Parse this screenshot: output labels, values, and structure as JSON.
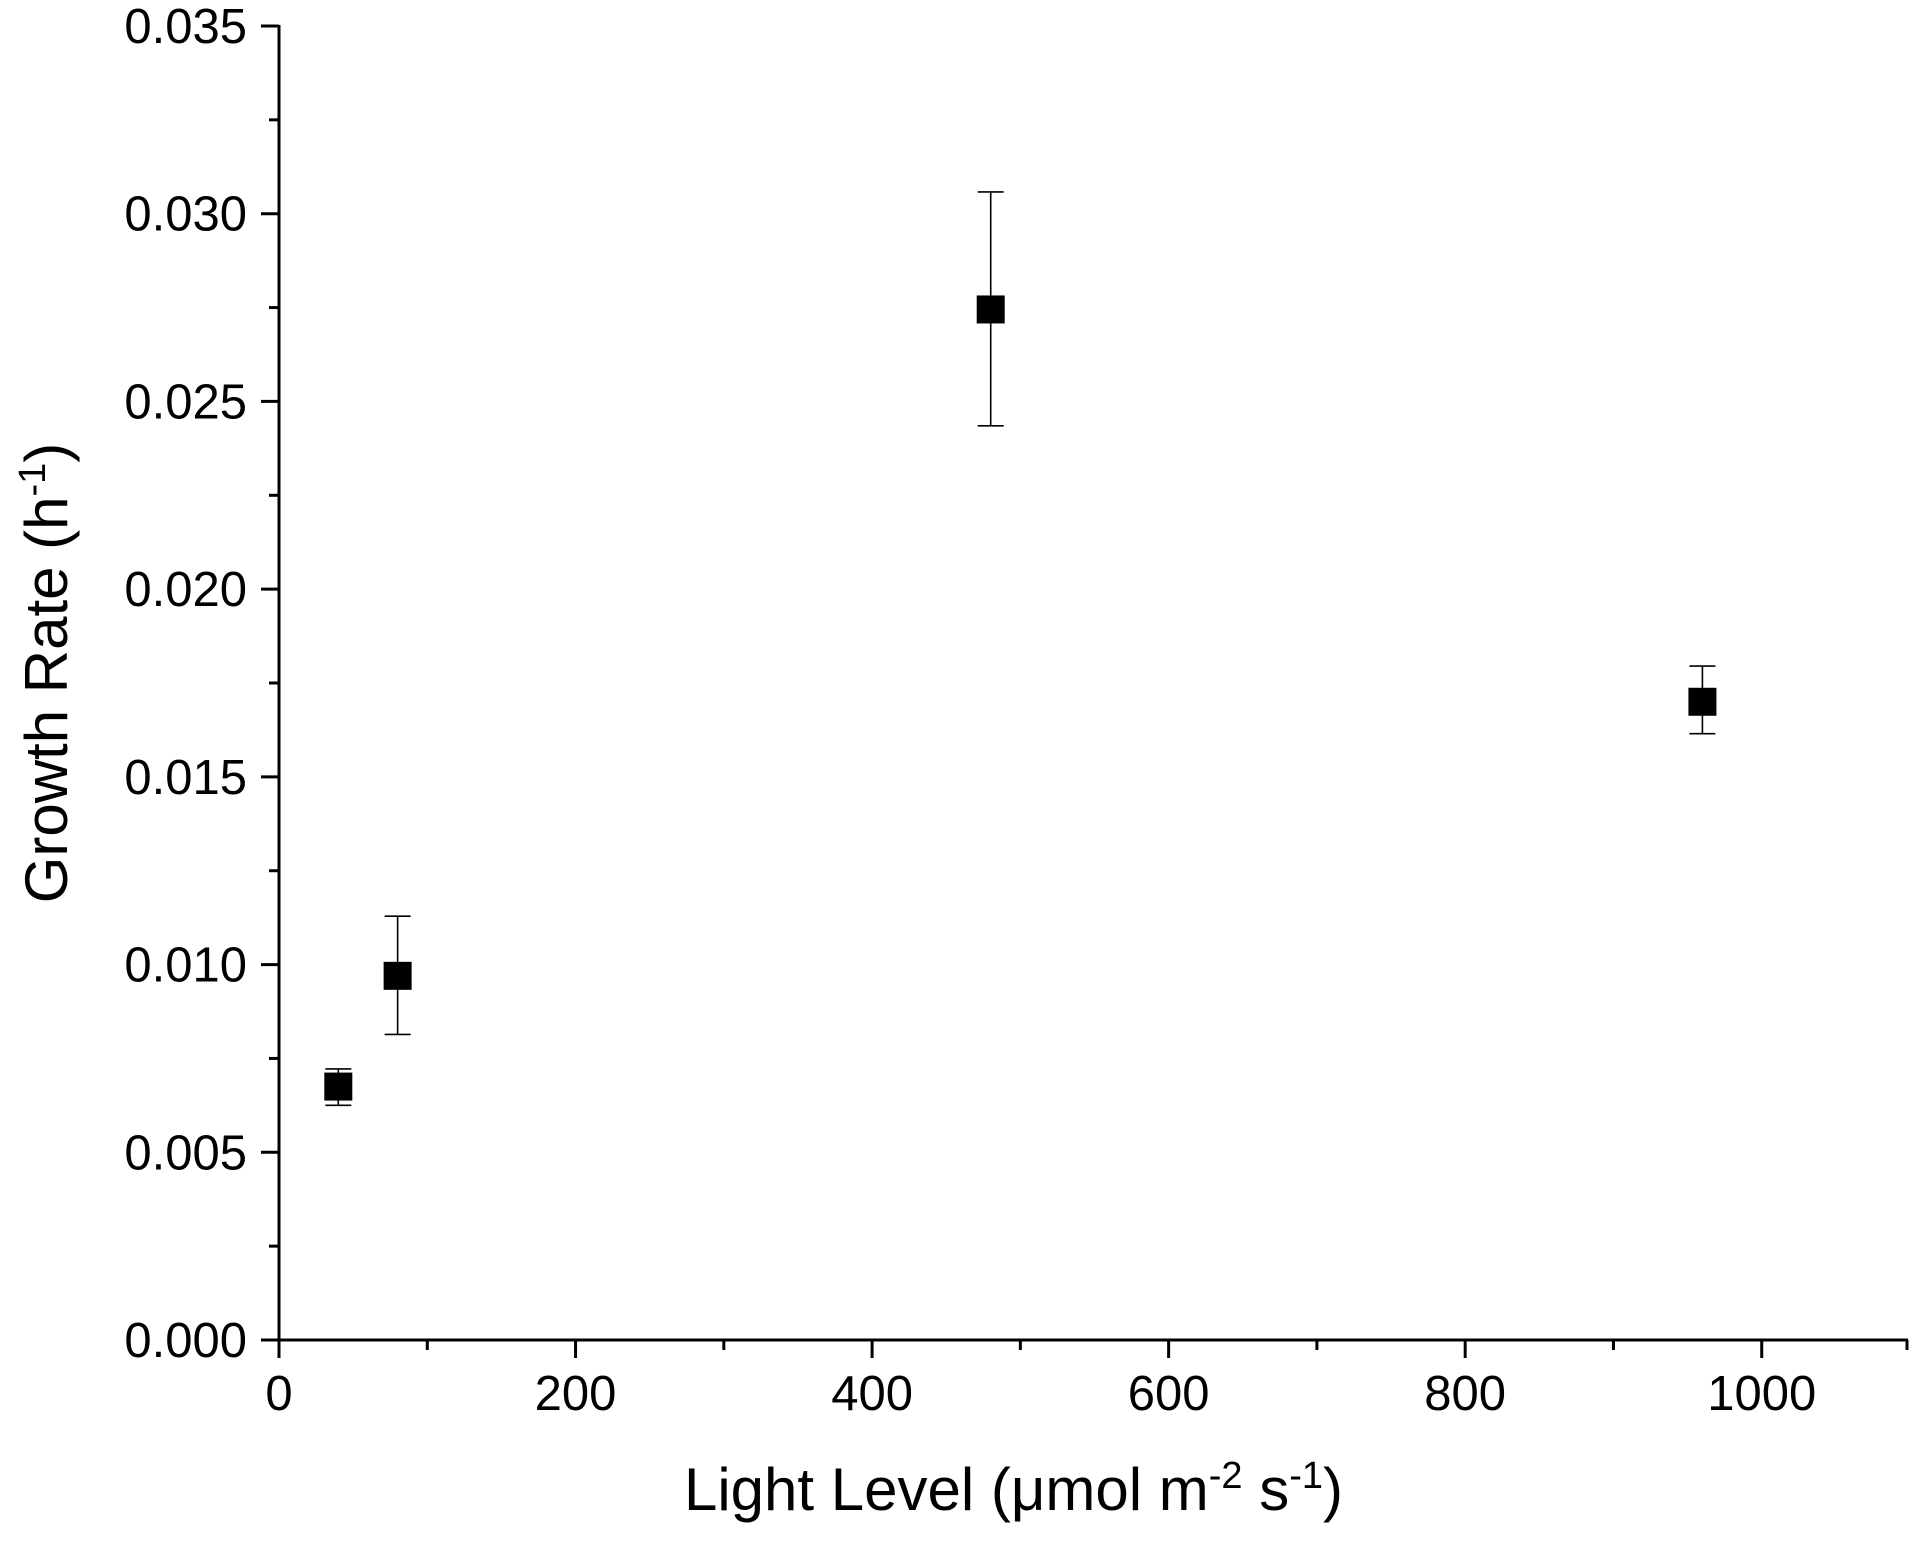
{
  "chart_data": {
    "type": "scatter",
    "title": "",
    "xlabel": "Light Level (μmol m⁻² s⁻¹)",
    "ylabel": "Growth Rate (h⁻¹)",
    "xlabel_parts": {
      "main": "Light Level (μmol m",
      "sup1": "-2",
      "mid": " s",
      "sup2": "-1",
      "end": ")"
    },
    "ylabel_parts": {
      "main": "Growth Rate (h",
      "sup": "-1",
      "end": ")"
    },
    "xlim": [
      0,
      1100
    ],
    "ylim": [
      0,
      0.035
    ],
    "x_ticks": [
      0,
      200,
      400,
      600,
      800,
      1000
    ],
    "x_tick_labels": [
      "0",
      "200",
      "400",
      "600",
      "800",
      "1000"
    ],
    "x_minor_ticks": [
      100,
      300,
      500,
      700,
      900,
      1100
    ],
    "y_ticks": [
      0,
      0.005,
      0.01,
      0.015,
      0.02,
      0.025,
      0.03,
      0.035
    ],
    "y_tick_labels": [
      "0.000",
      "0.005",
      "0.010",
      "0.015",
      "0.020",
      "0.025",
      "0.030",
      "0.035"
    ],
    "y_minor_ticks": [
      0.0025,
      0.0075,
      0.0125,
      0.0175,
      0.0225,
      0.0275,
      0.0325
    ],
    "grid": false,
    "marker": "square",
    "color": "#000000",
    "points": [
      {
        "x": 40,
        "y": 0.00675,
        "err_low": 0.00625,
        "err_high": 0.00722
      },
      {
        "x": 80,
        "y": 0.0097,
        "err_low": 0.00814,
        "err_high": 0.01129
      },
      {
        "x": 480,
        "y": 0.02745,
        "err_low": 0.02435,
        "err_high": 0.03058
      },
      {
        "x": 960,
        "y": 0.017,
        "err_low": 0.01615,
        "err_high": 0.01795
      }
    ]
  }
}
